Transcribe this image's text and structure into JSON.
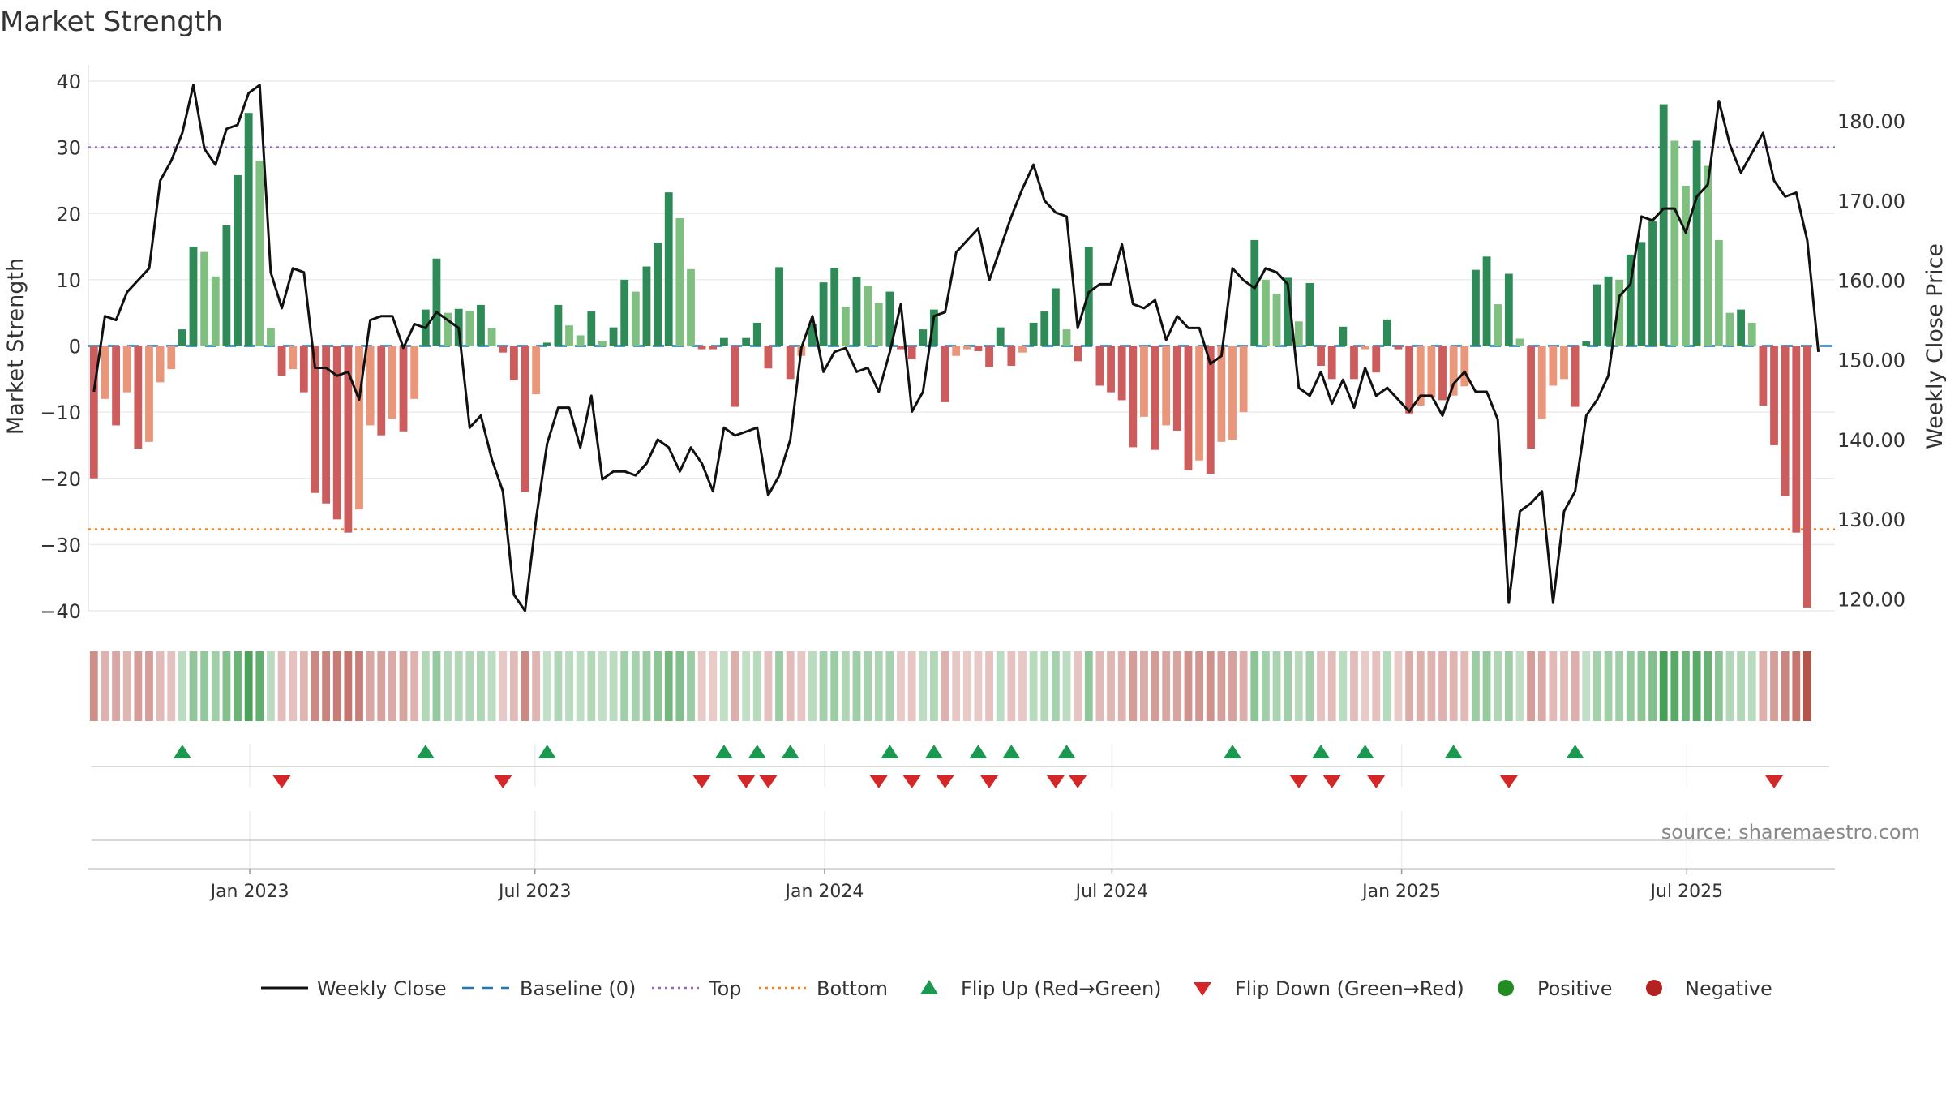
{
  "chart_data": {
    "type": "bar",
    "title": "Market Strength",
    "ylabel_left": "Market Strength",
    "ylabel_right": "Weekly Close Price",
    "source": "source: sharemaestro.com",
    "ylim_left": [
      -40,
      40
    ],
    "ylim_right": [
      118.5,
      185.0
    ],
    "left_ticks": [
      40,
      30,
      20,
      10,
      0,
      -10,
      -20,
      -30,
      -40
    ],
    "left_tick_labels": [
      "40",
      "30",
      "20",
      "10",
      "0",
      "−10",
      "−20",
      "−30",
      "−40"
    ],
    "right_ticks": [
      180,
      170,
      160,
      150,
      140,
      130,
      120
    ],
    "right_tick_labels": [
      "180.00",
      "170.00",
      "160.00",
      "150.00",
      "140.00",
      "130.00",
      "120.00"
    ],
    "x_tick_labels": [
      "Jan 2023",
      "Jul 2023",
      "Jan 2024",
      "Jul 2024",
      "Jan 2025",
      "Jul 2025"
    ],
    "x_tick_weeks": [
      14.6,
      40.4,
      66.6,
      92.6,
      118.8,
      144.6
    ],
    "top_line": 30,
    "bottom_line": -27.7,
    "colors": {
      "positive_dark": "#2e8b57",
      "positive_light": "#7fbf7f",
      "negative_dark": "#cd5c5c",
      "negative_light": "#e9967a",
      "close_line": "#111111",
      "baseline": "#1f77b4",
      "top": "#9467bd",
      "bottom": "#ff7f0e",
      "flip_up": "#1a9850",
      "flip_down": "#d62728",
      "positive_marker": "#228b22",
      "negative_marker": "#b22222"
    },
    "weeks": 158,
    "strength": [
      -20,
      -8,
      -12,
      -7,
      -15.5,
      -14.5,
      -5.5,
      -3.5,
      2.5,
      15,
      14.2,
      10.5,
      18.2,
      25.8,
      35.2,
      28,
      2.7,
      -4.5,
      -3.5,
      -7,
      -22.2,
      -23.8,
      -26.2,
      -28.2,
      -24.7,
      -12,
      -13.5,
      -11,
      -12.9,
      -8,
      5.5,
      13.2,
      5,
      5.6,
      5.3,
      6.2,
      2.7,
      -1,
      -5.2,
      -22,
      -7.3,
      0.5,
      6.2,
      3.1,
      1.6,
      5.2,
      0.8,
      2.8,
      10,
      8.2,
      12,
      15.6,
      23.2,
      19.3,
      11.6,
      -0.5,
      -0.5,
      1.2,
      -9.2,
      1.2,
      3.5,
      -3.4,
      11.9,
      -5,
      -1.5,
      3.3,
      9.6,
      11.8,
      5.9,
      10.4,
      9.1,
      6.5,
      8.2,
      -0.5,
      -2,
      2.5,
      5.5,
      -8.5,
      -1.5,
      -0.5,
      -0.8,
      -3.2,
      2.8,
      -3,
      -1,
      3.5,
      5.2,
      8.7,
      2.5,
      -2.3,
      15,
      -6,
      -7,
      -8.2,
      -15.3,
      -10.7,
      -15.7,
      -12,
      -12.8,
      -18.8,
      -17.3,
      -19.3,
      -14.5,
      -14.2,
      -10,
      16,
      10,
      7.9,
      10.3,
      3.7,
      9.5,
      -3,
      -5,
      2.9,
      -5,
      -0.5,
      -4,
      4,
      -0.5,
      -10.2,
      -9,
      -7.8,
      -8.2,
      -7.5,
      -6.1,
      11.5,
      13.5,
      6.3,
      10.9,
      1.1,
      -15.5,
      -11,
      -6,
      -5,
      -9.2,
      0.7,
      9.3,
      10.5,
      10,
      13.8,
      15.7,
      18.8,
      36.5,
      31,
      24.2,
      31,
      27.2,
      16,
      5,
      5.5,
      3.5,
      -9,
      -15,
      -22.7,
      -28.2,
      -39.5
    ],
    "close": [
      146,
      155.5,
      155,
      158.5,
      160,
      161.5,
      172.5,
      175,
      178.5,
      184.5,
      176.5,
      174.5,
      179,
      179.5,
      183.5,
      184.5,
      161,
      156.5,
      161.5,
      161,
      149,
      149,
      148,
      148.5,
      145,
      155,
      155.5,
      155.5,
      151.5,
      154.5,
      154,
      156,
      155,
      154,
      141.5,
      143,
      137.5,
      133.5,
      120.5,
      118.5,
      130,
      139.5,
      144,
      144,
      139,
      145.5,
      135,
      136,
      136,
      135.5,
      137,
      140,
      139,
      136,
      139,
      137,
      133.5,
      141.5,
      140.5,
      141,
      141.5,
      133,
      135.5,
      140,
      151.5,
      155.5,
      148.5,
      151,
      151.5,
      148.5,
      149,
      146,
      151,
      157,
      143.5,
      146,
      155.5,
      156,
      163.5,
      165,
      166.5,
      160,
      164,
      168,
      171.5,
      174.5,
      170,
      168.5,
      168,
      154,
      158.5,
      159.5,
      159.5,
      164.5,
      157,
      156.5,
      157.5,
      152.5,
      155.5,
      154,
      154,
      149.5,
      150.5,
      161.5,
      160,
      159,
      161.5,
      161,
      159.5,
      146.5,
      145.5,
      148.5,
      144.5,
      147.5,
      144,
      149,
      145.5,
      146.5,
      145,
      143.5,
      145.5,
      145.5,
      143,
      147,
      148.5,
      146,
      146,
      142.5,
      119.5,
      131,
      132,
      133.5,
      119.5,
      131,
      133.5,
      143,
      145,
      148,
      158,
      159.5,
      168,
      167.5,
      169,
      169,
      166,
      170.5,
      172,
      182.5,
      177,
      173.5,
      176,
      178.5,
      172.5,
      170.5,
      171,
      165,
      151
    ]
  },
  "flip_up_weeks": [
    8,
    30,
    41,
    57,
    60,
    63,
    72,
    76,
    80,
    83,
    88,
    103,
    111,
    115,
    123,
    134
  ],
  "flip_down_weeks": [
    17,
    37,
    55,
    59,
    61,
    71,
    74,
    77,
    81,
    87,
    89,
    109,
    112,
    116,
    128,
    152
  ],
  "legend": {
    "weekly_close": "Weekly Close",
    "baseline": "Baseline (0)",
    "top": "Top",
    "bottom": "Bottom",
    "flip_up": "Flip Up (Red→Green)",
    "flip_down": "Flip Down (Green→Red)",
    "positive": "Positive",
    "negative": "Negative"
  }
}
